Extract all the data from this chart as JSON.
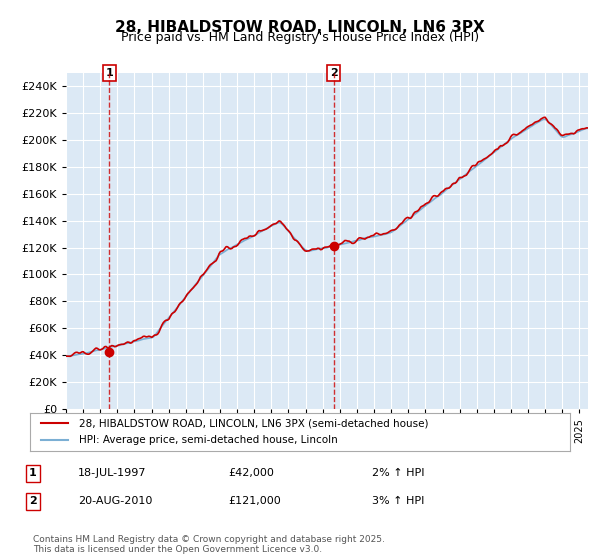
{
  "title": "28, HIBALDSTOW ROAD, LINCOLN, LN6 3PX",
  "subtitle": "Price paid vs. HM Land Registry's House Price Index (HPI)",
  "legend_label1": "28, HIBALDSTOW ROAD, LINCOLN, LN6 3PX (semi-detached house)",
  "legend_label2": "HPI: Average price, semi-detached house, Lincoln",
  "annotation1_label": "1",
  "annotation1_date": "18-JUL-1997",
  "annotation1_price": "£42,000",
  "annotation1_hpi": "2% ↑ HPI",
  "annotation1_year": 1997.54,
  "annotation1_value": 42000,
  "annotation2_label": "2",
  "annotation2_date": "20-AUG-2010",
  "annotation2_price": "£121,000",
  "annotation2_hpi": "3% ↑ HPI",
  "annotation2_year": 2010.63,
  "annotation2_value": 121000,
  "background_color": "#dce9f5",
  "plot_bg_color": "#dce9f5",
  "line1_color": "#cc0000",
  "line2_color": "#7bafd4",
  "marker_color": "#cc0000",
  "vline_color": "#cc0000",
  "grid_color": "#ffffff",
  "ylim": [
    0,
    250000
  ],
  "ytick_step": 20000,
  "footer": "Contains HM Land Registry data © Crown copyright and database right 2025.\nThis data is licensed under the Open Government Licence v3.0."
}
